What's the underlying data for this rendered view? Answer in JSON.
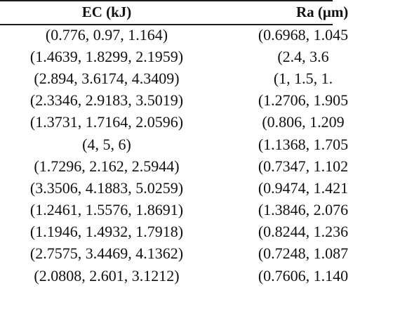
{
  "table": {
    "headers": [
      "EC (kJ)",
      "Ra (μm)"
    ],
    "rows": [
      {
        "ec": "(0.776, 0.97, 1.164)",
        "ra": "(0.6968, 1.045"
      },
      {
        "ec": "(1.4639, 1.8299, 2.1959)",
        "ra": "(2.4, 3.6"
      },
      {
        "ec": "(2.894, 3.6174, 4.3409)",
        "ra": "(1, 1.5, 1."
      },
      {
        "ec": "(2.3346, 2.9183, 3.5019)",
        "ra": "(1.2706, 1.905"
      },
      {
        "ec": "(1.3731, 1.7164, 2.0596)",
        "ra": "(0.806, 1.209"
      },
      {
        "ec": "(4, 5, 6)",
        "ra": "(1.1368, 1.705"
      },
      {
        "ec": "(1.7296, 2.162, 2.5944)",
        "ra": "(0.7347, 1.102"
      },
      {
        "ec": "(3.3506, 4.1883, 5.0259)",
        "ra": "(0.9474, 1.421"
      },
      {
        "ec": "(1.2461, 1.5576, 1.8691)",
        "ra": "(1.3846, 2.076"
      },
      {
        "ec": "(1.1946, 1.4932, 1.7918)",
        "ra": "(0.8244, 1.236"
      },
      {
        "ec": "(2.7575, 3.4469, 4.1362)",
        "ra": "(0.7248, 1.087"
      },
      {
        "ec": "(2.0808, 2.601, 3.1212)",
        "ra": "(0.7606, 1.140"
      }
    ]
  }
}
